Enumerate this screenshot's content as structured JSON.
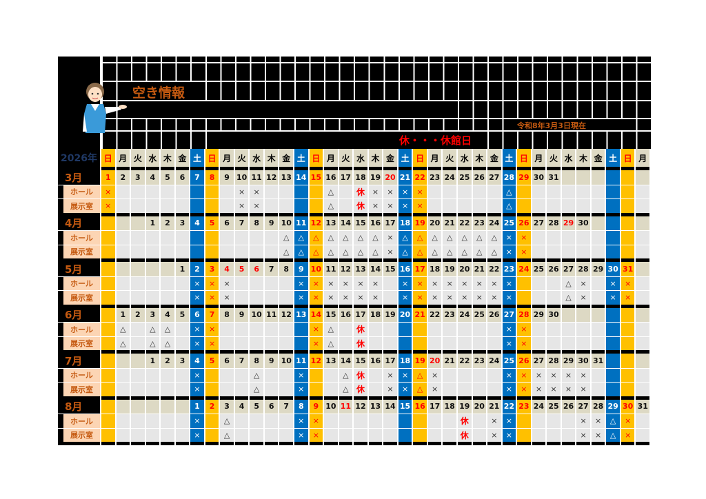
{
  "title": "空き情報",
  "as_of": "令和8年3月3日現在",
  "legend": "休・・・休館日",
  "year_label": "2026年",
  "room_labels": [
    "ホール",
    "展示室"
  ],
  "weekdays": [
    "日",
    "月",
    "火",
    "水",
    "木",
    "金",
    "土",
    "日",
    "月",
    "火",
    "水",
    "木",
    "金",
    "土",
    "日",
    "月",
    "火",
    "水",
    "木",
    "金",
    "土",
    "日",
    "月",
    "火",
    "水",
    "木",
    "金",
    "土",
    "日",
    "月",
    "火",
    "水",
    "木",
    "金",
    "土",
    "日",
    "月"
  ],
  "colors": {
    "saturday": "#0070c0",
    "sunday": "#ffc000",
    "holiday_text": "#ff0000",
    "label_brown": "#c55a11",
    "room_label_bg": "#fcd5b4"
  },
  "months": [
    {
      "label": "3月",
      "start_col": 0,
      "days": 31,
      "holidays": [
        20
      ],
      "hall": {
        "1": "×",
        "10": "×",
        "11": "×",
        "16": "△",
        "18": "休",
        "19": "×",
        "20": "×",
        "21": "×",
        "22": "×",
        "28": "△"
      },
      "exhibit": {
        "1": "×",
        "10": "×",
        "11": "×",
        "16": "△",
        "18": "休",
        "19": "×",
        "20": "×",
        "21": "×",
        "22": "×",
        "28": "△"
      }
    },
    {
      "label": "4月",
      "start_col": 3,
      "days": 30,
      "holidays": [
        29
      ],
      "hall": {
        "10": "△",
        "11": "△",
        "12": "△",
        "13": "△",
        "14": "△",
        "15": "△",
        "16": "△",
        "17": "×",
        "18": "△",
        "19": "△",
        "20": "△",
        "21": "△",
        "22": "△",
        "23": "△",
        "24": "△",
        "25": "×",
        "26": "×"
      },
      "exhibit": {
        "10": "△",
        "11": "△",
        "12": "△",
        "13": "△",
        "14": "△",
        "15": "△",
        "16": "△",
        "17": "×",
        "18": "△",
        "19": "△",
        "20": "△",
        "21": "△",
        "22": "△",
        "23": "△",
        "24": "△",
        "25": "×",
        "26": "×"
      }
    },
    {
      "label": "5月",
      "start_col": 5,
      "days": 31,
      "holidays": [
        3,
        4,
        5,
        6
      ],
      "hall": {
        "2": "×",
        "3": "×",
        "4": "×",
        "9": "×",
        "10": "×",
        "11": "×",
        "12": "×",
        "13": "×",
        "14": "×",
        "16": "×",
        "17": "×",
        "18": "×",
        "19": "×",
        "20": "×",
        "21": "×",
        "22": "×",
        "23": "×",
        "27": "△",
        "28": "×",
        "30": "×",
        "31": "×"
      },
      "exhibit": {
        "2": "×",
        "3": "×",
        "4": "×",
        "9": "×",
        "10": "×",
        "11": "×",
        "12": "×",
        "13": "×",
        "14": "×",
        "16": "×",
        "17": "×",
        "18": "×",
        "19": "×",
        "20": "×",
        "21": "×",
        "22": "×",
        "23": "×",
        "27": "△",
        "28": "×",
        "30": "×",
        "31": "×"
      }
    },
    {
      "label": "6月",
      "start_col": 1,
      "days": 30,
      "holidays": [],
      "hall": {
        "1": "△",
        "3": "△",
        "4": "△",
        "6": "×",
        "7": "×",
        "14": "×",
        "15": "△",
        "17": "休",
        "27": "×",
        "28": "×"
      },
      "exhibit": {
        "1": "△",
        "3": "△",
        "4": "△",
        "6": "×",
        "7": "×",
        "14": "×",
        "15": "△",
        "17": "休",
        "27": "×",
        "28": "×"
      }
    },
    {
      "label": "7月",
      "start_col": 3,
      "days": 31,
      "holidays": [
        20
      ],
      "hall": {
        "4": "×",
        "8": "△",
        "11": "×",
        "14": "△",
        "15": "休",
        "17": "×",
        "18": "×",
        "19": "△",
        "20": "×",
        "25": "×",
        "26": "×",
        "27": "×",
        "28": "×",
        "29": "×",
        "30": "×"
      },
      "exhibit": {
        "4": "×",
        "8": "△",
        "11": "×",
        "14": "△",
        "15": "休",
        "17": "×",
        "18": "×",
        "19": "△",
        "20": "×",
        "25": "×",
        "26": "×",
        "27": "×",
        "28": "×",
        "29": "×",
        "30": "×"
      }
    },
    {
      "label": "8月",
      "start_col": 6,
      "days": 31,
      "holidays": [
        11
      ],
      "hall": {
        "1": "×",
        "3": "△",
        "8": "×",
        "9": "×",
        "19": "休",
        "21": "×",
        "22": "×",
        "27": "×",
        "28": "×",
        "29": "△",
        "30": "×"
      },
      "exhibit": {
        "1": "×",
        "3": "△",
        "8": "×",
        "9": "×",
        "19": "休",
        "21": "×",
        "22": "×",
        "27": "×",
        "28": "×",
        "29": "△",
        "30": "×"
      }
    }
  ]
}
